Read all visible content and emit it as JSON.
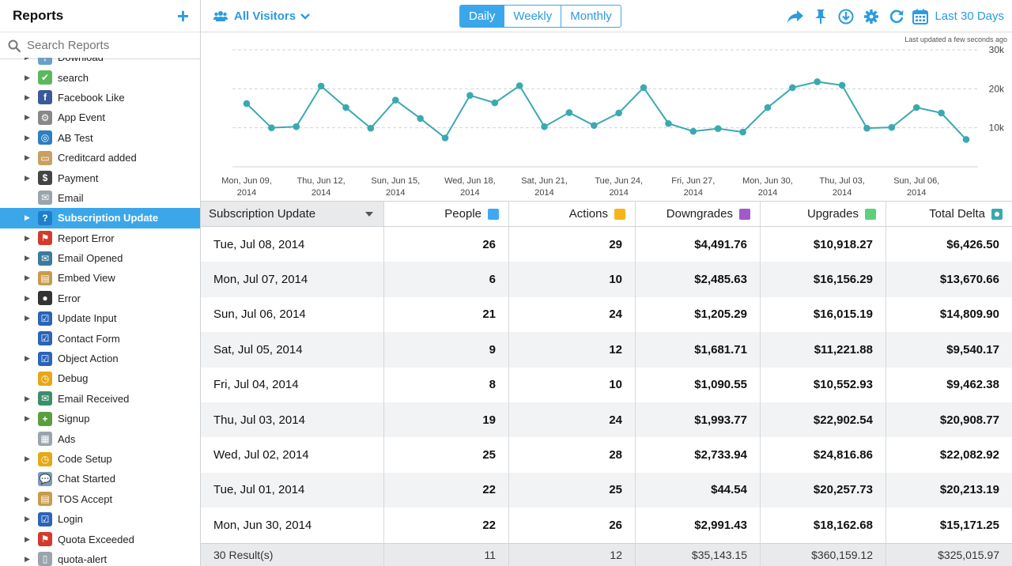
{
  "sidebar": {
    "title": "Reports",
    "search_placeholder": "Search Reports",
    "items": [
      {
        "label": "Download",
        "icon": "download-icon",
        "color": "#6aa0c8",
        "glyph": "↓",
        "tri": true
      },
      {
        "label": "search",
        "icon": "check-icon",
        "color": "#5cb85c",
        "glyph": "✔",
        "tri": true
      },
      {
        "label": "Facebook Like",
        "icon": "facebook-icon",
        "color": "#3b5998",
        "glyph": "f",
        "tri": true
      },
      {
        "label": "App Event",
        "icon": "bicycle-icon",
        "color": "#888888",
        "glyph": "⚙",
        "tri": true
      },
      {
        "label": "AB Test",
        "icon": "ab-test-icon",
        "color": "#2c7fc0",
        "glyph": "◎",
        "tri": true
      },
      {
        "label": "Creditcard added",
        "icon": "creditcard-icon",
        "color": "#c8a060",
        "glyph": "▭",
        "tri": true
      },
      {
        "label": "Payment",
        "icon": "dollar-icon",
        "color": "#444444",
        "glyph": "$",
        "tri": true
      },
      {
        "label": "Email",
        "icon": "email-icon",
        "color": "#9aa4ad",
        "glyph": "✉",
        "tri": false
      },
      {
        "label": "Subscription Update",
        "icon": "help-circle-icon",
        "color": "#1f7fc9",
        "glyph": "?",
        "tri": true,
        "active": true
      },
      {
        "label": "Report Error",
        "icon": "flag-icon",
        "color": "#d33a2c",
        "glyph": "⚑",
        "tri": true
      },
      {
        "label": "Email Opened",
        "icon": "email-opened-icon",
        "color": "#3a7a9c",
        "glyph": "✉",
        "tri": true
      },
      {
        "label": "Embed View",
        "icon": "clipboard-icon",
        "color": "#c89b4b",
        "glyph": "▤",
        "tri": true
      },
      {
        "label": "Error",
        "icon": "bomb-icon",
        "color": "#333333",
        "glyph": "●",
        "tri": true
      },
      {
        "label": "Update Input",
        "icon": "checkbox-icon",
        "color": "#2a64b8",
        "glyph": "☑",
        "tri": true
      },
      {
        "label": "Contact Form",
        "icon": "checkbox-icon",
        "color": "#2a64b8",
        "glyph": "☑",
        "tri": false
      },
      {
        "label": "Object Action",
        "icon": "checkbox-icon",
        "color": "#2a64b8",
        "glyph": "☑",
        "tri": true
      },
      {
        "label": "Debug",
        "icon": "clock-icon",
        "color": "#e6a817",
        "glyph": "◷",
        "tri": false
      },
      {
        "label": "Email Received",
        "icon": "email-received-icon",
        "color": "#3a8f6a",
        "glyph": "✉",
        "tri": true
      },
      {
        "label": "Signup",
        "icon": "signup-icon",
        "color": "#5a9f3c",
        "glyph": "+",
        "tri": true
      },
      {
        "label": "Ads",
        "icon": "ads-icon",
        "color": "#9aa4ad",
        "glyph": "▦",
        "tri": false
      },
      {
        "label": "Code Setup",
        "icon": "clock-icon",
        "color": "#e6a817",
        "glyph": "◷",
        "tri": true
      },
      {
        "label": "Chat Started",
        "icon": "chat-icon",
        "color": "#7a9bb5",
        "glyph": "💬",
        "tri": false
      },
      {
        "label": "TOS Accept",
        "icon": "clipboard-icon",
        "color": "#c89b4b",
        "glyph": "▤",
        "tri": true
      },
      {
        "label": "Login",
        "icon": "checkbox-icon",
        "color": "#2a64b8",
        "glyph": "☑",
        "tri": true
      },
      {
        "label": "Quota Exceeded",
        "icon": "flag-icon",
        "color": "#d33a2c",
        "glyph": "⚑",
        "tri": true
      },
      {
        "label": "quota-alert",
        "icon": "document-icon",
        "color": "#9aa4ad",
        "glyph": "▯",
        "tri": true
      }
    ]
  },
  "topbar": {
    "segment_label": "All Visitors",
    "intervals": [
      "Daily",
      "Weekly",
      "Monthly"
    ],
    "active_interval": "Daily",
    "date_range": "Last 30 Days",
    "accent": "#2c9be0"
  },
  "chart": {
    "updated_text": "Last updated a few seconds ago"
  },
  "chart_data": {
    "type": "line",
    "x": [
      "Jun 09",
      "Jun 10",
      "Jun 11",
      "Jun 12",
      "Jun 13",
      "Jun 14",
      "Jun 15",
      "Jun 16",
      "Jun 17",
      "Jun 18",
      "Jun 19",
      "Jun 20",
      "Jun 21",
      "Jun 22",
      "Jun 23",
      "Jun 24",
      "Jun 25",
      "Jun 26",
      "Jun 27",
      "Jun 28",
      "Jun 29",
      "Jun 30",
      "Jul 01",
      "Jul 02",
      "Jul 03",
      "Jul 04",
      "Jul 05",
      "Jul 06",
      "Jul 07",
      "Jul 08"
    ],
    "x_tick_labels": [
      [
        "Mon, Jun 09,",
        "2014"
      ],
      [
        "Thu, Jun 12,",
        "2014"
      ],
      [
        "Sun, Jun 15,",
        "2014"
      ],
      [
        "Wed, Jun 18,",
        "2014"
      ],
      [
        "Sat, Jun 21,",
        "2014"
      ],
      [
        "Tue, Jun 24,",
        "2014"
      ],
      [
        "Fri, Jun 27,",
        "2014"
      ],
      [
        "Mon, Jun 30,",
        "2014"
      ],
      [
        "Thu, Jul 03,",
        "2014"
      ],
      [
        "Sun, Jul 06,",
        "2014"
      ]
    ],
    "x_tick_index": [
      0,
      3,
      6,
      9,
      12,
      15,
      18,
      21,
      24,
      27
    ],
    "series": [
      {
        "values": [
          16200,
          10000,
          10300,
          20700,
          15200,
          9900,
          17100,
          12400,
          7400,
          18300,
          16400,
          20800,
          10300,
          13900,
          10600,
          13800,
          20300,
          11100,
          9100,
          9800,
          8900,
          15200,
          20300,
          21800,
          20900,
          9900,
          10100,
          15200,
          13800,
          7000
        ],
        "color": "#3aa9b0"
      }
    ],
    "y_ticks": [
      "10k",
      "20k",
      "30k"
    ],
    "y_tick_values": [
      10000,
      20000,
      30000
    ],
    "ylim": [
      0,
      30000
    ],
    "grid": true
  },
  "table": {
    "headers": {
      "event": "Subscription Update",
      "people": "People",
      "actions": "Actions",
      "downgrades": "Downgrades",
      "upgrades": "Upgrades",
      "delta": "Total Delta"
    },
    "swatches": {
      "people": "#3ea8f2",
      "actions": "#f7b51c",
      "downgrades": "#a05bc8",
      "upgrades": "#5fcf7c",
      "delta": "#3aa9b0"
    },
    "rows": [
      {
        "date": "Tue, Jul 08, 2014",
        "people": "26",
        "actions": "29",
        "downgrades": "$4,491.76",
        "upgrades": "$10,918.27",
        "delta": "$6,426.50"
      },
      {
        "date": "Mon, Jul 07, 2014",
        "people": "6",
        "actions": "10",
        "downgrades": "$2,485.63",
        "upgrades": "$16,156.29",
        "delta": "$13,670.66"
      },
      {
        "date": "Sun, Jul 06, 2014",
        "people": "21",
        "actions": "24",
        "downgrades": "$1,205.29",
        "upgrades": "$16,015.19",
        "delta": "$14,809.90"
      },
      {
        "date": "Sat, Jul 05, 2014",
        "people": "9",
        "actions": "12",
        "downgrades": "$1,681.71",
        "upgrades": "$11,221.88",
        "delta": "$9,540.17"
      },
      {
        "date": "Fri, Jul 04, 2014",
        "people": "8",
        "actions": "10",
        "downgrades": "$1,090.55",
        "upgrades": "$10,552.93",
        "delta": "$9,462.38"
      },
      {
        "date": "Thu, Jul 03, 2014",
        "people": "19",
        "actions": "24",
        "downgrades": "$1,993.77",
        "upgrades": "$22,902.54",
        "delta": "$20,908.77"
      },
      {
        "date": "Wed, Jul 02, 2014",
        "people": "25",
        "actions": "28",
        "downgrades": "$2,733.94",
        "upgrades": "$24,816.86",
        "delta": "$22,082.92"
      },
      {
        "date": "Tue, Jul 01, 2014",
        "people": "22",
        "actions": "25",
        "downgrades": "$44.54",
        "upgrades": "$20,257.73",
        "delta": "$20,213.19"
      },
      {
        "date": "Mon, Jun 30, 2014",
        "people": "22",
        "actions": "26",
        "downgrades": "$2,991.43",
        "upgrades": "$18,162.68",
        "delta": "$15,171.25"
      }
    ],
    "footer": {
      "results": "30 Result(s)",
      "people": "11",
      "actions": "12",
      "downgrades": "$35,143.15",
      "upgrades": "$360,159.12",
      "delta": "$325,015.97"
    }
  }
}
